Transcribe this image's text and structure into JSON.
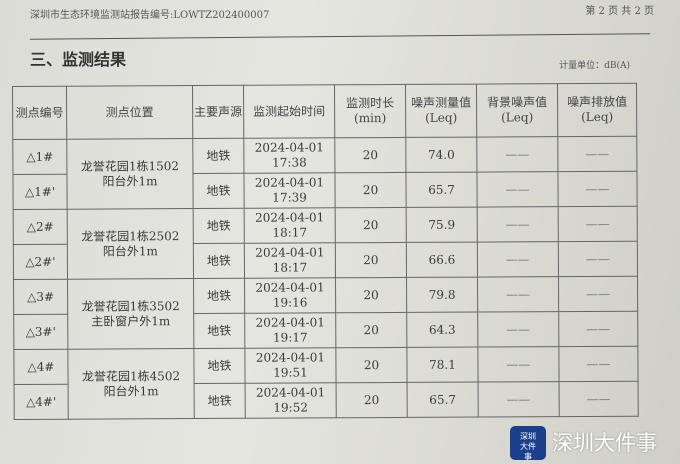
{
  "header": {
    "report_no": "深圳市生态环境监测站报告编号:LOWTZ202400007",
    "page": "第 2 页 共 2 页"
  },
  "section_title": "三、监测结果",
  "unit": "计量单位：dB(A)",
  "columns": [
    "测点编号",
    "测点位置",
    "主要声源",
    "监测起始时间",
    "监测时长(min)",
    "噪声测量值(Leq)",
    "背景噪声值(Leq)",
    "噪声排放值(Leq)"
  ],
  "rows": [
    {
      "id": "△1#",
      "loc": "龙誉花园1栋1502阳台外1m",
      "src": "地铁",
      "date": "2024-04-01",
      "time": "17:38",
      "dur": "20",
      "val": "74.0",
      "bg": "——",
      "em": "——"
    },
    {
      "id": "△1#'",
      "src": "地铁",
      "date": "2024-04-01",
      "time": "17:39",
      "dur": "20",
      "val": "65.7",
      "bg": "——",
      "em": "——"
    },
    {
      "id": "△2#",
      "loc": "龙誉花园1栋2502阳台外1m",
      "src": "地铁",
      "date": "2024-04-01",
      "time": "18:17",
      "dur": "20",
      "val": "75.9",
      "bg": "——",
      "em": "——"
    },
    {
      "id": "△2#'",
      "src": "地铁",
      "date": "2024-04-01",
      "time": "18:17",
      "dur": "20",
      "val": "66.6",
      "bg": "——",
      "em": "——"
    },
    {
      "id": "△3#",
      "loc": "龙誉花园1栋3502主卧窗户外1m",
      "src": "地铁",
      "date": "2024-04-01",
      "time": "19:16",
      "dur": "20",
      "val": "79.8",
      "bg": "——",
      "em": "——"
    },
    {
      "id": "△3#'",
      "src": "地铁",
      "date": "2024-04-01",
      "time": "19:17",
      "dur": "20",
      "val": "64.3",
      "bg": "——",
      "em": "——"
    },
    {
      "id": "△4#",
      "loc": "龙誉花园1栋4502阳台外1m",
      "src": "地铁",
      "date": "2024-04-01",
      "time": "19:51",
      "dur": "20",
      "val": "78.1",
      "bg": "——",
      "em": "——"
    },
    {
      "id": "△4#'",
      "src": "地铁",
      "date": "2024-04-01",
      "time": "19:52",
      "dur": "20",
      "val": "65.7",
      "bg": "——",
      "em": "——"
    }
  ],
  "watermark": {
    "logo_text": "深圳大件事",
    "text": "深圳大件事",
    "logo_color": "#1b3f8a"
  }
}
